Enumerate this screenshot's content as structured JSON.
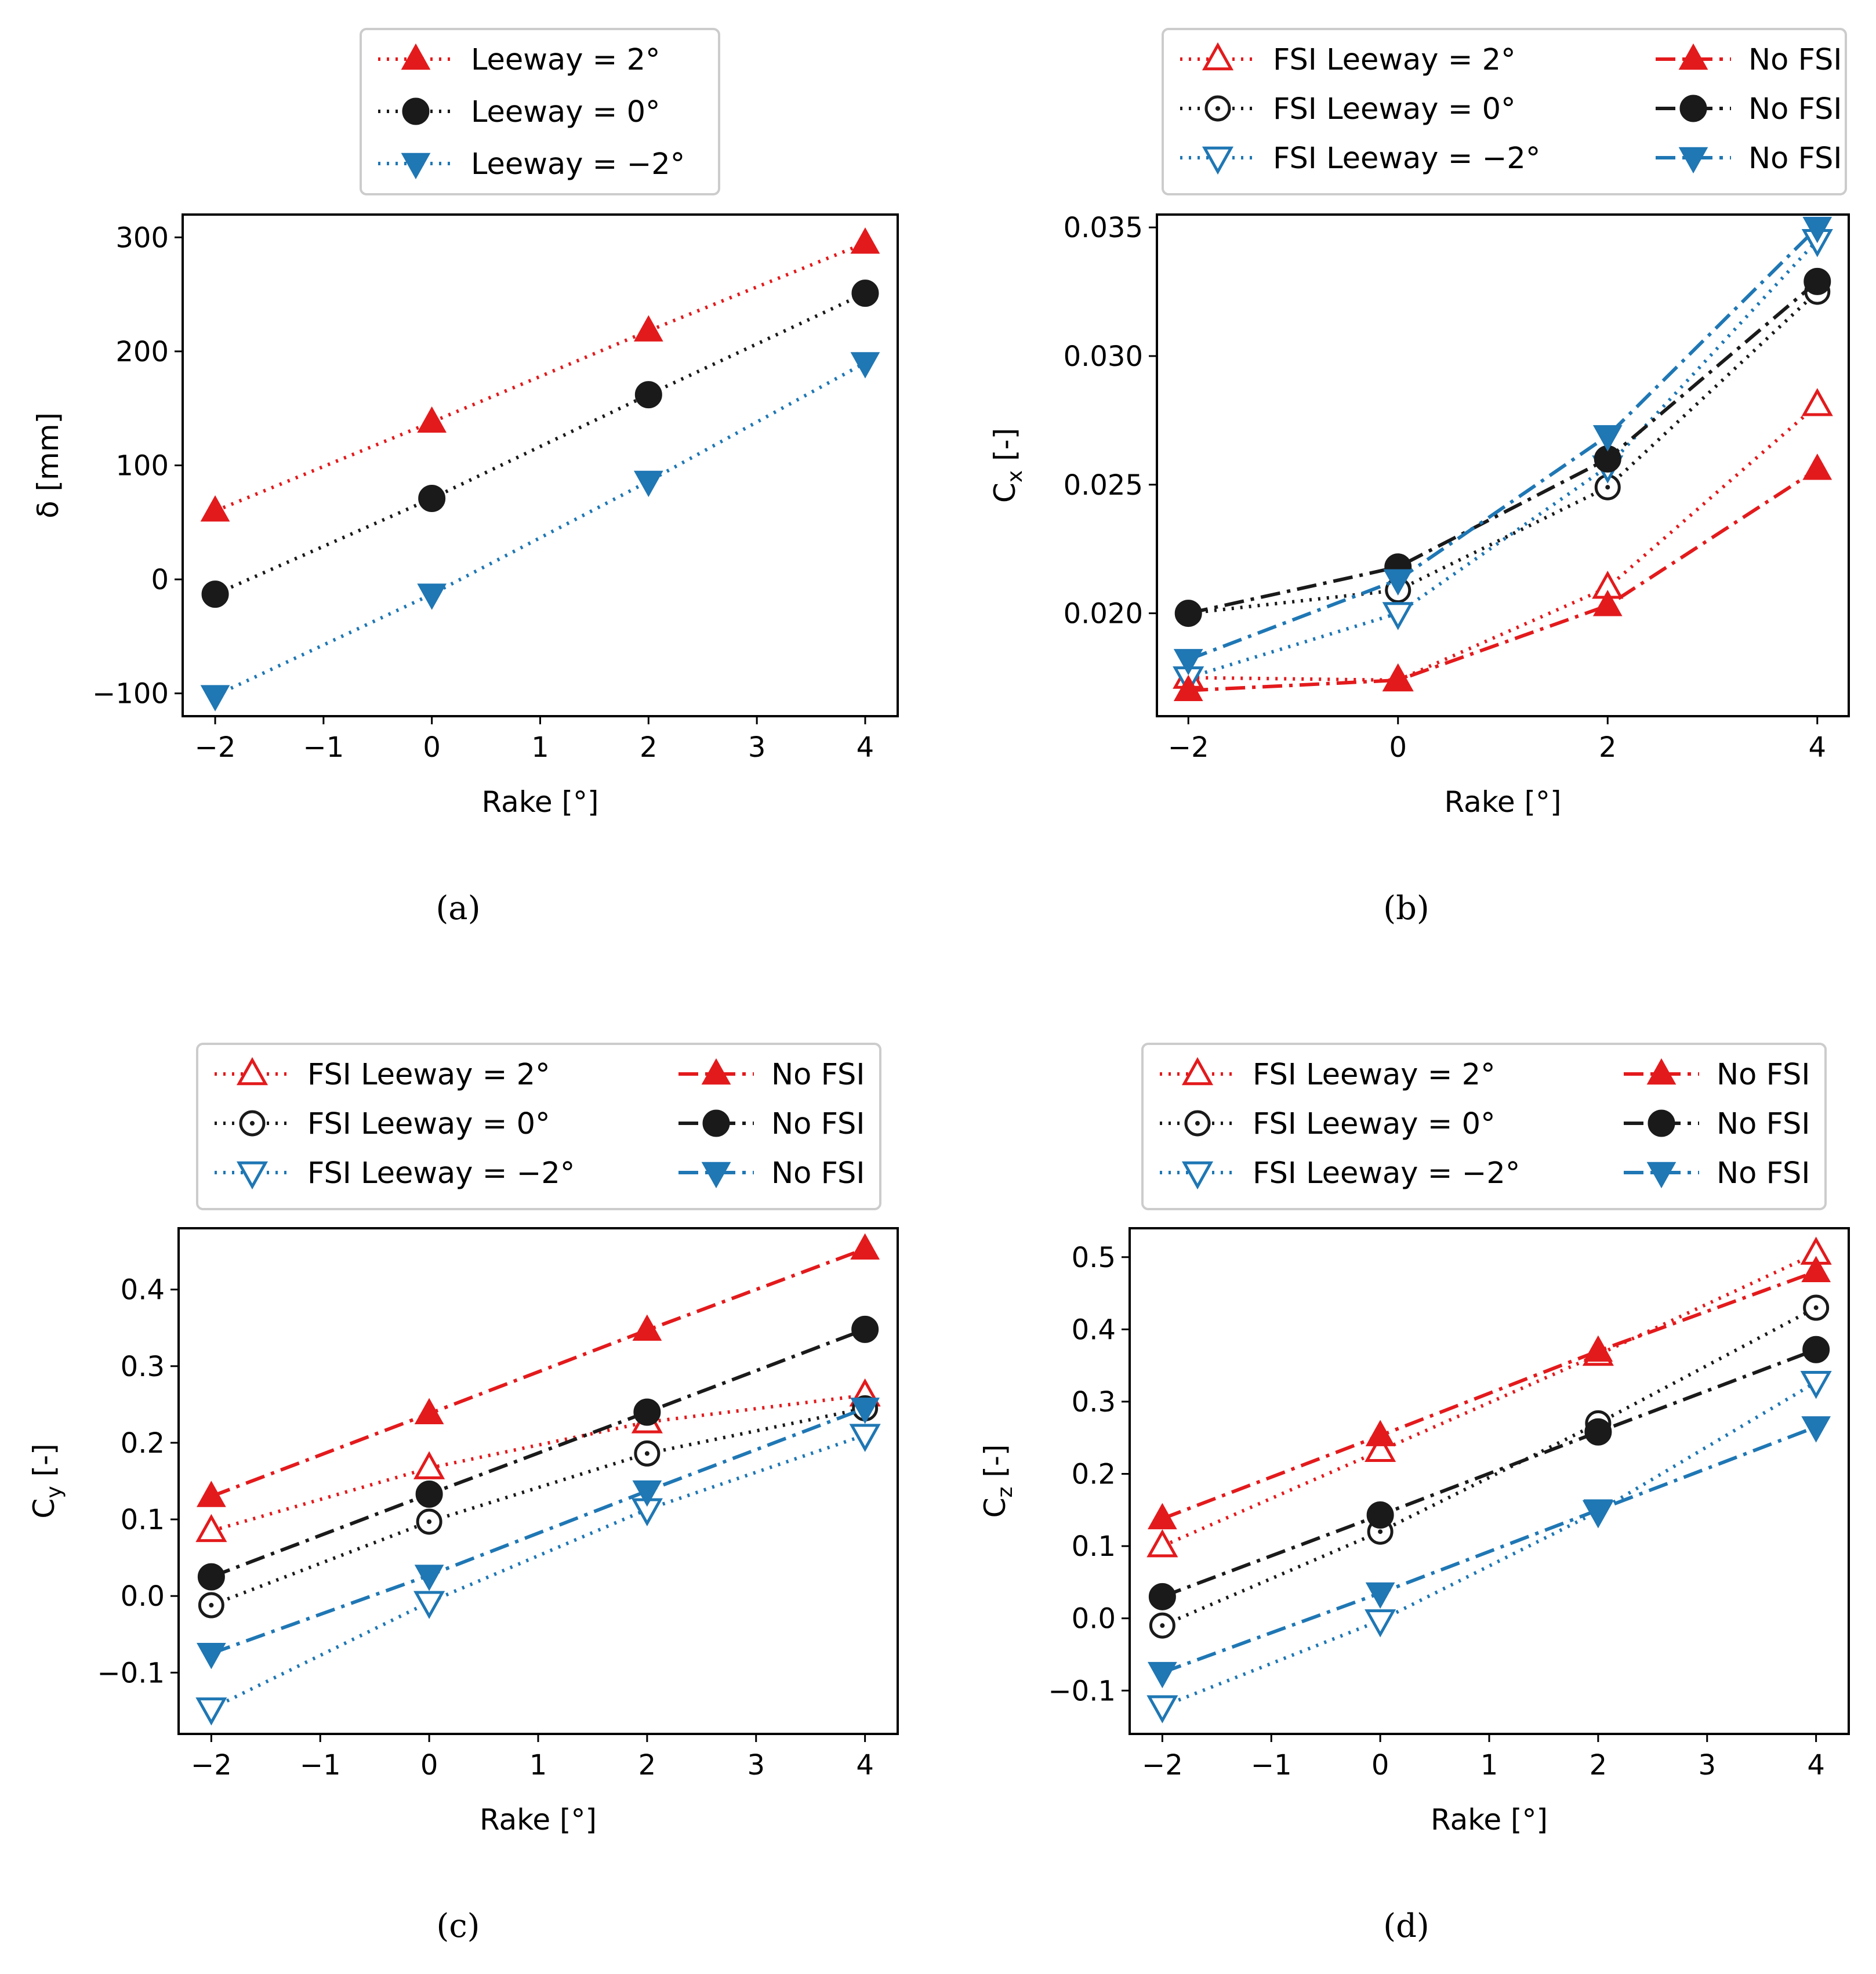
{
  "colors": {
    "red": "#e31a1c",
    "black": "#1a1a1a",
    "blue": "#1f77b4"
  },
  "chart_data": [
    {
      "id": "a",
      "type": "line",
      "caption": "(a)",
      "xlabel": "Rake [°]",
      "ylabel": "δ [mm]",
      "xlim": [
        -2.3,
        4.3
      ],
      "ylim": [
        -120,
        320
      ],
      "xticks": [
        -2,
        -1,
        0,
        1,
        2,
        3,
        4
      ],
      "xtick_labels": [
        "−2",
        "−1",
        "0",
        "1",
        "2",
        "3",
        "4"
      ],
      "yticks": [
        -100,
        0,
        100,
        200,
        300
      ],
      "ytick_labels": [
        "−100",
        "0",
        "100",
        "200",
        "300"
      ],
      "legend": {
        "placement": "above",
        "columns": 1
      },
      "series": [
        {
          "name": "Leeway = 2°",
          "color": "red",
          "marker": "triangle-up",
          "filled": true,
          "linestyle": "dotted",
          "x": [
            -2,
            0,
            2,
            4
          ],
          "y": [
            60,
            138,
            218,
            295
          ]
        },
        {
          "name": "Leeway = 0°",
          "color": "black",
          "marker": "circle",
          "filled": true,
          "linestyle": "dotted",
          "x": [
            -2,
            0,
            2,
            4
          ],
          "y": [
            -13,
            71,
            162,
            251
          ]
        },
        {
          "name": "Leeway = −2°",
          "color": "blue",
          "marker": "triangle-down",
          "filled": true,
          "linestyle": "dotted",
          "x": [
            -2,
            0,
            2,
            4
          ],
          "y": [
            -102,
            -13,
            86,
            190
          ]
        }
      ]
    },
    {
      "id": "b",
      "type": "line",
      "caption": "(b)",
      "xlabel": "Rake [°]",
      "ylabel": "C",
      "ylabel_sub": "x",
      "ylabel_suffix": " [-]",
      "xlim": [
        -2.3,
        4.3
      ],
      "ylim": [
        0.016,
        0.0355
      ],
      "xticks": [
        -2,
        0,
        2,
        4
      ],
      "xtick_labels": [
        "−2",
        "0",
        "2",
        "4"
      ],
      "yticks": [
        0.02,
        0.025,
        0.03,
        0.035
      ],
      "ytick_labels": [
        "0.020",
        "0.025",
        "0.030",
        "0.035"
      ],
      "legend": {
        "placement": "above",
        "columns": 2
      },
      "series": [
        {
          "name": "FSI Leeway = 2°",
          "color": "red",
          "marker": "triangle-up",
          "filled": false,
          "linestyle": "dotted",
          "x": [
            -2,
            0,
            2,
            4
          ],
          "y": [
            0.0175,
            0.0174,
            0.021,
            0.0281
          ]
        },
        {
          "name": "FSI Leeway = 0°",
          "color": "black",
          "marker": "circle",
          "filled": false,
          "linestyle": "dotted",
          "x": [
            -2,
            0,
            2,
            4
          ],
          "y": [
            0.02,
            0.0209,
            0.0249,
            0.0325
          ]
        },
        {
          "name": "FSI Leeway = −2°",
          "color": "blue",
          "marker": "triangle-down",
          "filled": false,
          "linestyle": "dotted",
          "x": [
            -2,
            0,
            2,
            4
          ],
          "y": [
            0.0175,
            0.02,
            0.0257,
            0.0345
          ]
        },
        {
          "name": "No FSI",
          "color": "red",
          "marker": "triangle-up",
          "filled": true,
          "linestyle": "dashdot",
          "x": [
            -2,
            0,
            2,
            4
          ],
          "y": [
            0.017,
            0.0174,
            0.0203,
            0.0256
          ]
        },
        {
          "name": "No FSI",
          "color": "black",
          "marker": "circle",
          "filled": true,
          "linestyle": "dashdot",
          "x": [
            -2,
            0,
            2,
            4
          ],
          "y": [
            0.02,
            0.0218,
            0.026,
            0.0329
          ]
        },
        {
          "name": "No FSI",
          "color": "blue",
          "marker": "triangle-down",
          "filled": true,
          "linestyle": "dashdot",
          "x": [
            -2,
            0,
            2,
            4
          ],
          "y": [
            0.0182,
            0.0213,
            0.0269,
            0.035
          ]
        }
      ]
    },
    {
      "id": "c",
      "type": "line",
      "caption": "(c)",
      "xlabel": "Rake [°]",
      "ylabel": "C",
      "ylabel_sub": "y",
      "ylabel_suffix": " [-]",
      "xlim": [
        -2.3,
        4.3
      ],
      "ylim": [
        -0.18,
        0.48
      ],
      "xticks": [
        -2,
        -1,
        0,
        1,
        2,
        3,
        4
      ],
      "xtick_labels": [
        "−2",
        "−1",
        "0",
        "1",
        "2",
        "3",
        "4"
      ],
      "yticks": [
        -0.1,
        0.0,
        0.1,
        0.2,
        0.3,
        0.4
      ],
      "ytick_labels": [
        "−0.1",
        "0.0",
        "0.1",
        "0.2",
        "0.3",
        "0.4"
      ],
      "legend": {
        "placement": "above",
        "columns": 2
      },
      "series": [
        {
          "name": "FSI Leeway = 2°",
          "color": "red",
          "marker": "triangle-up",
          "filled": false,
          "linestyle": "dotted",
          "x": [
            -2,
            0,
            2,
            4
          ],
          "y": [
            0.085,
            0.167,
            0.227,
            0.262
          ]
        },
        {
          "name": "FSI Leeway = 0°",
          "color": "black",
          "marker": "circle",
          "filled": false,
          "linestyle": "dotted",
          "x": [
            -2,
            0,
            2,
            4
          ],
          "y": [
            -0.012,
            0.097,
            0.186,
            0.245
          ]
        },
        {
          "name": "FSI Leeway = −2°",
          "color": "blue",
          "marker": "triangle-down",
          "filled": false,
          "linestyle": "dotted",
          "x": [
            -2,
            0,
            2,
            4
          ],
          "y": [
            -0.147,
            -0.008,
            0.113,
            0.21
          ]
        },
        {
          "name": "No FSI",
          "color": "red",
          "marker": "triangle-up",
          "filled": true,
          "linestyle": "dashdot",
          "x": [
            -2,
            0,
            2,
            4
          ],
          "y": [
            0.13,
            0.238,
            0.347,
            0.453
          ]
        },
        {
          "name": "No FSI",
          "color": "black",
          "marker": "circle",
          "filled": true,
          "linestyle": "dashdot",
          "x": [
            -2,
            0,
            2,
            4
          ],
          "y": [
            0.025,
            0.133,
            0.24,
            0.348
          ]
        },
        {
          "name": "No FSI",
          "color": "blue",
          "marker": "triangle-down",
          "filled": true,
          "linestyle": "dashdot",
          "x": [
            -2,
            0,
            2,
            4
          ],
          "y": [
            -0.075,
            0.027,
            0.137,
            0.245
          ]
        }
      ]
    },
    {
      "id": "d",
      "type": "line",
      "caption": "(d)",
      "xlabel": "Rake [°]",
      "ylabel": "C",
      "ylabel_sub": "z",
      "ylabel_suffix": " [-]",
      "xlim": [
        -2.3,
        4.3
      ],
      "ylim": [
        -0.16,
        0.54
      ],
      "xticks": [
        -2,
        -1,
        0,
        1,
        2,
        3,
        4
      ],
      "xtick_labels": [
        "−2",
        "−1",
        "0",
        "1",
        "2",
        "3",
        "4"
      ],
      "yticks": [
        -0.1,
        0.0,
        0.1,
        0.2,
        0.3,
        0.4,
        0.5
      ],
      "ytick_labels": [
        "−0.1",
        "0.0",
        "0.1",
        "0.2",
        "0.3",
        "0.4",
        "0.5"
      ],
      "legend": {
        "placement": "above",
        "columns": 2
      },
      "series": [
        {
          "name": "FSI Leeway = 2°",
          "color": "red",
          "marker": "triangle-up",
          "filled": false,
          "linestyle": "dotted",
          "x": [
            -2,
            0,
            2,
            4
          ],
          "y": [
            0.1,
            0.232,
            0.365,
            0.505
          ]
        },
        {
          "name": "FSI Leeway = 0°",
          "color": "black",
          "marker": "circle",
          "filled": false,
          "linestyle": "dotted",
          "x": [
            -2,
            0,
            2,
            4
          ],
          "y": [
            -0.01,
            0.12,
            0.27,
            0.43
          ]
        },
        {
          "name": "FSI Leeway = −2°",
          "color": "blue",
          "marker": "triangle-down",
          "filled": false,
          "linestyle": "dotted",
          "x": [
            -2,
            0,
            2,
            4
          ],
          "y": [
            -0.122,
            -0.003,
            0.148,
            0.327
          ]
        },
        {
          "name": "No FSI",
          "color": "red",
          "marker": "triangle-up",
          "filled": true,
          "linestyle": "dashdot",
          "x": [
            -2,
            0,
            2,
            4
          ],
          "y": [
            0.138,
            0.253,
            0.37,
            0.48
          ]
        },
        {
          "name": "No FSI",
          "color": "black",
          "marker": "circle",
          "filled": true,
          "linestyle": "dashdot",
          "x": [
            -2,
            0,
            2,
            4
          ],
          "y": [
            0.03,
            0.143,
            0.258,
            0.372
          ]
        },
        {
          "name": "No FSI",
          "color": "blue",
          "marker": "triangle-down",
          "filled": true,
          "linestyle": "dashdot",
          "x": [
            -2,
            0,
            2,
            4
          ],
          "y": [
            -0.075,
            0.035,
            0.15,
            0.265
          ]
        }
      ]
    }
  ]
}
